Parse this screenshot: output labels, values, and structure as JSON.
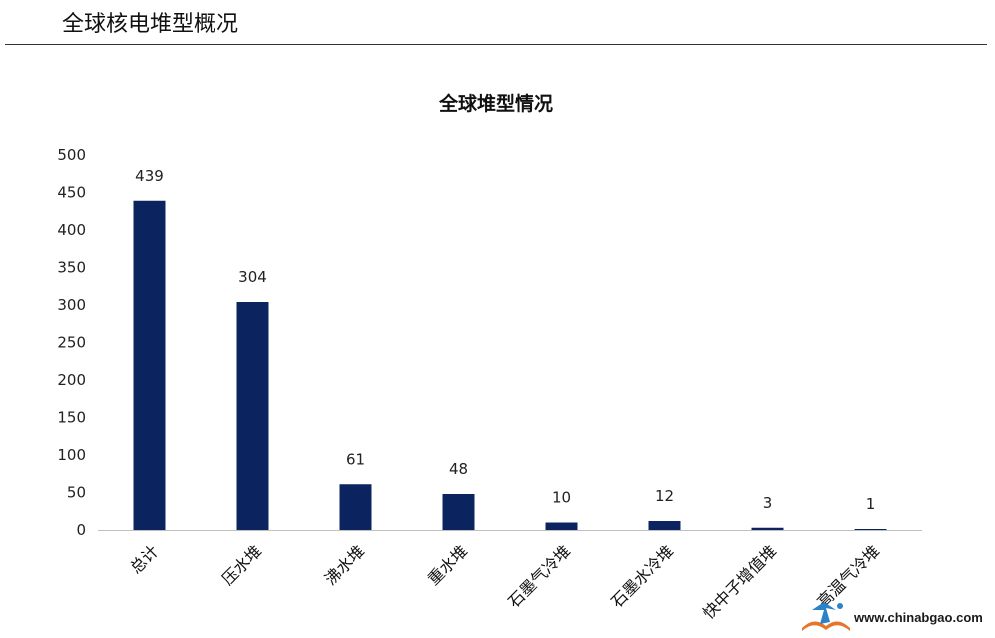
{
  "header": {
    "title": "全球核电堆型概况"
  },
  "chart_data": {
    "type": "bar",
    "title": "全球堆型情况",
    "categories": [
      "总计",
      "压水堆",
      "沸水堆",
      "重水堆",
      "石墨气冷堆",
      "石墨水冷堆",
      "快中子增值堆",
      "高温气冷堆"
    ],
    "values": [
      439,
      304,
      61,
      48,
      10,
      12,
      3,
      1
    ],
    "ylim": [
      0,
      500
    ],
    "yticks": [
      0,
      50,
      100,
      150,
      200,
      250,
      300,
      350,
      400,
      450,
      500
    ],
    "grid": false,
    "legend": "none",
    "bar_color": "#0b2460"
  },
  "watermark": {
    "text": "www.chinabgao.com",
    "icon": "chinabgao-logo-icon"
  }
}
